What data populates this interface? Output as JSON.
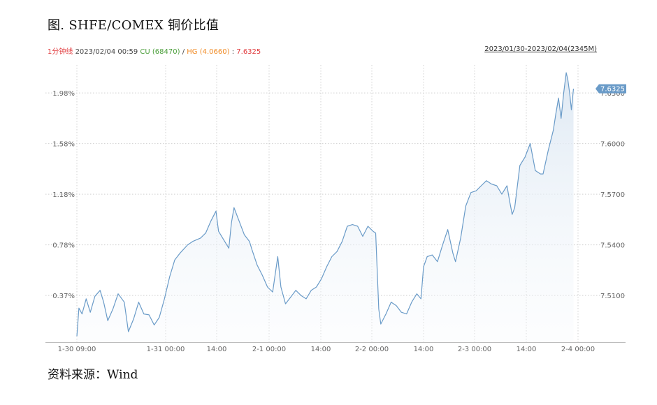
{
  "figure_title": "图. SHFE/COMEX 铜价比值",
  "info": {
    "period": "1分钟线",
    "datetime": "2023/02/04 00:59",
    "cu_label": "CU",
    "cu_value": "(68470)",
    "slash": "/",
    "hg_label": "HG",
    "hg_value": "(4.0660)",
    "colon": ":",
    "ratio_value": "7.6325",
    "range": "2023/01/30-2023/02/04(2345M)"
  },
  "source": "资料来源：Wind",
  "colors": {
    "line": "#6a9bc8",
    "fill_top": "#dde8f3",
    "grid": "#d0d0d0",
    "red": "#e0383b",
    "cu": "#4a9e3a",
    "hg": "#f08a24",
    "badge": "#6a9bc8"
  },
  "chart_data": {
    "type": "line",
    "x_tick_labels": [
      "1-30 09:00",
      "1-31 00:00",
      "14:00",
      "2-1 00:00",
      "14:00",
      "2-2 00:00",
      "14:00",
      "2-3 00:00",
      "14:00",
      "2-4 00:00"
    ],
    "left_axis": {
      "tick_labels": [
        "0.37%",
        "0.78%",
        "1.18%",
        "1.58%",
        "1.98%"
      ]
    },
    "right_axis": {
      "tick_labels": [
        "7.5100",
        "7.5400",
        "7.5700",
        "7.6000",
        "7.6300"
      ],
      "ticks": [
        7.51,
        7.54,
        7.57,
        7.6,
        7.63
      ]
    },
    "ylim": [
      7.4823,
      7.6466
    ],
    "last_value_label": "7.6325",
    "grid": true,
    "series": [
      {
        "points": [
          [
            0.0,
            7.4858
          ],
          [
            0.4,
            7.5025
          ],
          [
            1.0,
            7.499
          ],
          [
            1.8,
            7.508
          ],
          [
            2.6,
            7.5
          ],
          [
            3.5,
            7.5095
          ],
          [
            4.5,
            7.513
          ],
          [
            5.2,
            7.506
          ],
          [
            6.0,
            7.495
          ],
          [
            7.0,
            7.502
          ],
          [
            8.0,
            7.511
          ],
          [
            9.2,
            7.506
          ],
          [
            10.0,
            7.4885
          ],
          [
            11.0,
            7.496
          ],
          [
            12.0,
            7.506
          ],
          [
            13.0,
            7.499
          ],
          [
            14.0,
            7.4985
          ],
          [
            15.0,
            7.4925
          ],
          [
            16.0,
            7.497
          ],
          [
            17.0,
            7.508
          ],
          [
            18.0,
            7.521
          ],
          [
            19.0,
            7.531
          ],
          [
            20.0,
            7.535
          ],
          [
            21.5,
            7.54
          ],
          [
            22.5,
            7.542
          ],
          [
            24.0,
            7.544
          ],
          [
            25.0,
            7.547
          ],
          [
            26.0,
            7.554
          ],
          [
            27.0,
            7.56
          ],
          [
            27.5,
            7.548
          ],
          [
            28.5,
            7.543
          ],
          [
            29.5,
            7.538
          ],
          [
            30.0,
            7.553
          ],
          [
            30.5,
            7.562
          ],
          [
            31.5,
            7.554
          ],
          [
            32.5,
            7.546
          ],
          [
            33.5,
            7.542
          ],
          [
            34.0,
            7.537
          ],
          [
            35.0,
            7.528
          ],
          [
            36.0,
            7.522
          ],
          [
            37.0,
            7.515
          ],
          [
            38.0,
            7.512
          ],
          [
            39.0,
            7.533
          ],
          [
            39.6,
            7.515
          ],
          [
            40.5,
            7.505
          ],
          [
            41.5,
            7.509
          ],
          [
            42.5,
            7.513
          ],
          [
            43.5,
            7.51
          ],
          [
            44.5,
            7.508
          ],
          [
            45.5,
            7.513
          ],
          [
            46.5,
            7.515
          ],
          [
            47.5,
            7.52
          ],
          [
            48.5,
            7.527
          ],
          [
            49.5,
            7.533
          ],
          [
            50.5,
            7.536
          ],
          [
            51.5,
            7.542
          ],
          [
            52.5,
            7.551
          ],
          [
            53.5,
            7.552
          ],
          [
            54.5,
            7.551
          ],
          [
            55.5,
            7.545
          ],
          [
            56.5,
            7.551
          ],
          [
            57.5,
            7.548
          ],
          [
            58.0,
            7.547
          ],
          [
            58.6,
            7.502
          ],
          [
            59.0,
            7.493
          ],
          [
            60.0,
            7.499
          ],
          [
            61.0,
            7.506
          ],
          [
            62.0,
            7.504
          ],
          [
            63.0,
            7.5
          ],
          [
            64.0,
            7.499
          ],
          [
            65.0,
            7.506
          ],
          [
            66.0,
            7.511
          ],
          [
            66.8,
            7.508
          ],
          [
            67.3,
            7.527
          ],
          [
            68.0,
            7.533
          ],
          [
            69.0,
            7.534
          ],
          [
            70.0,
            7.53
          ],
          [
            71.0,
            7.54
          ],
          [
            72.0,
            7.549
          ],
          [
            73.0,
            7.535
          ],
          [
            73.5,
            7.53
          ],
          [
            74.5,
            7.544
          ],
          [
            75.5,
            7.563
          ],
          [
            76.5,
            7.571
          ],
          [
            77.5,
            7.572
          ],
          [
            78.5,
            7.575
          ],
          [
            79.5,
            7.578
          ],
          [
            80.5,
            7.576
          ],
          [
            81.5,
            7.575
          ],
          [
            82.5,
            7.57
          ],
          [
            83.5,
            7.575
          ],
          [
            84.0,
            7.566
          ],
          [
            84.5,
            7.558
          ],
          [
            85.0,
            7.562
          ],
          [
            86.0,
            7.587
          ],
          [
            87.0,
            7.592
          ],
          [
            88.0,
            7.6
          ],
          [
            89.0,
            7.584
          ],
          [
            90.0,
            7.582
          ],
          [
            90.5,
            7.582
          ],
          [
            91.5,
            7.596
          ],
          [
            92.5,
            7.608
          ],
          [
            93.0,
            7.618
          ],
          [
            93.5,
            7.627
          ],
          [
            94.0,
            7.615
          ],
          [
            94.5,
            7.63
          ],
          [
            95.0,
            7.642
          ],
          [
            95.3,
            7.638
          ],
          [
            95.7,
            7.629
          ],
          [
            96.0,
            7.62
          ],
          [
            96.4,
            7.6325
          ]
        ]
      }
    ]
  }
}
